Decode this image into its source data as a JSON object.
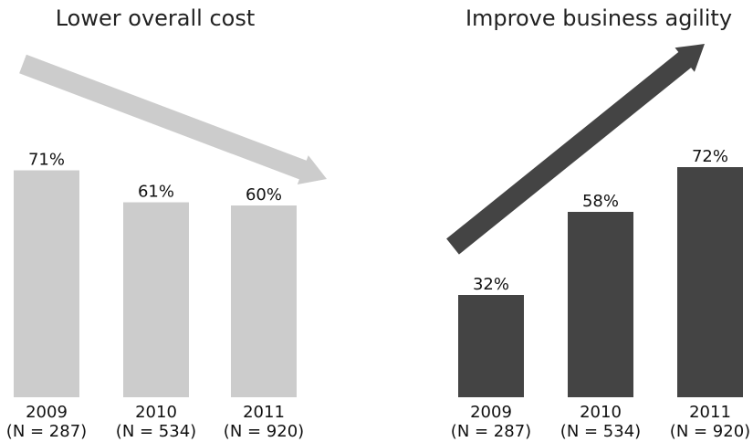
{
  "chart_data": [
    {
      "type": "bar",
      "title": "Lower overall cost",
      "categories": [
        "2009",
        "2010",
        "2011"
      ],
      "sample_sizes": [
        "(N = 287)",
        "(N = 534)",
        "(N = 920)"
      ],
      "series": [
        {
          "values": [
            71,
            61,
            60
          ]
        }
      ],
      "value_labels": [
        "71%",
        "61%",
        "60%"
      ],
      "ylim": [
        0,
        100
      ],
      "trend": "down",
      "colors": {
        "bar": "#cccccc",
        "arrow": "#cccccc"
      }
    },
    {
      "type": "bar",
      "title": "Improve business agility",
      "categories": [
        "2009",
        "2010",
        "2011"
      ],
      "sample_sizes": [
        "(N = 287)",
        "(N = 534)",
        "(N = 920)"
      ],
      "series": [
        {
          "values": [
            32,
            58,
            72
          ]
        }
      ],
      "value_labels": [
        "32%",
        "58%",
        "72%"
      ],
      "ylim": [
        0,
        100
      ],
      "trend": "up",
      "colors": {
        "bar": "#444444",
        "arrow": "#444444"
      }
    }
  ]
}
